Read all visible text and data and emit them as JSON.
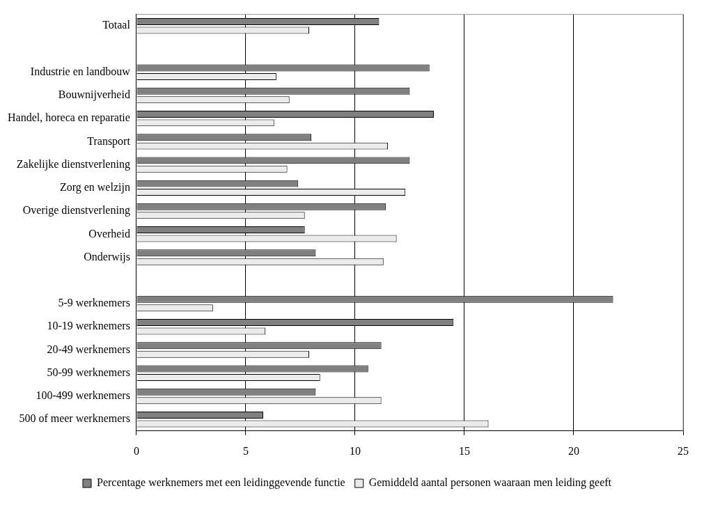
{
  "chart_data": {
    "type": "bar",
    "orientation": "horizontal",
    "categories": [
      "Totaal",
      null,
      "Industrie en landbouw",
      "Bouwnijverheid",
      "Handel, horeca en reparatie",
      "Transport",
      "Zakelijke dienstverlening",
      "Zorg en welzijn",
      "Overige dienstverlening",
      "Overheid",
      "Onderwijs",
      null,
      "5-9 werknemers",
      "10-19 werknemers",
      "20-49 werknemers",
      "50-99 werknemers",
      "100-499 werknemers",
      "500 of meer werknemers"
    ],
    "series": [
      {
        "name": "Percentage werknemers met een leidinggevende functie",
        "color": "#808080",
        "values": [
          11.1,
          null,
          13.4,
          12.5,
          13.6,
          8.0,
          12.5,
          7.4,
          11.4,
          7.7,
          8.2,
          null,
          21.8,
          14.5,
          11.2,
          10.6,
          8.2,
          5.8
        ]
      },
      {
        "name": "Gemiddeld aantal personen waaraan men leiding geeft",
        "color": "#ebebeb",
        "values": [
          7.9,
          null,
          6.4,
          7.0,
          6.3,
          11.5,
          6.9,
          12.3,
          7.7,
          11.9,
          11.3,
          null,
          3.5,
          5.9,
          7.9,
          8.4,
          11.2,
          16.1
        ]
      }
    ],
    "xlim": [
      0,
      25
    ],
    "xticks": [
      0,
      5,
      10,
      15,
      20,
      25
    ],
    "grid": "x",
    "legend": "bottom"
  }
}
